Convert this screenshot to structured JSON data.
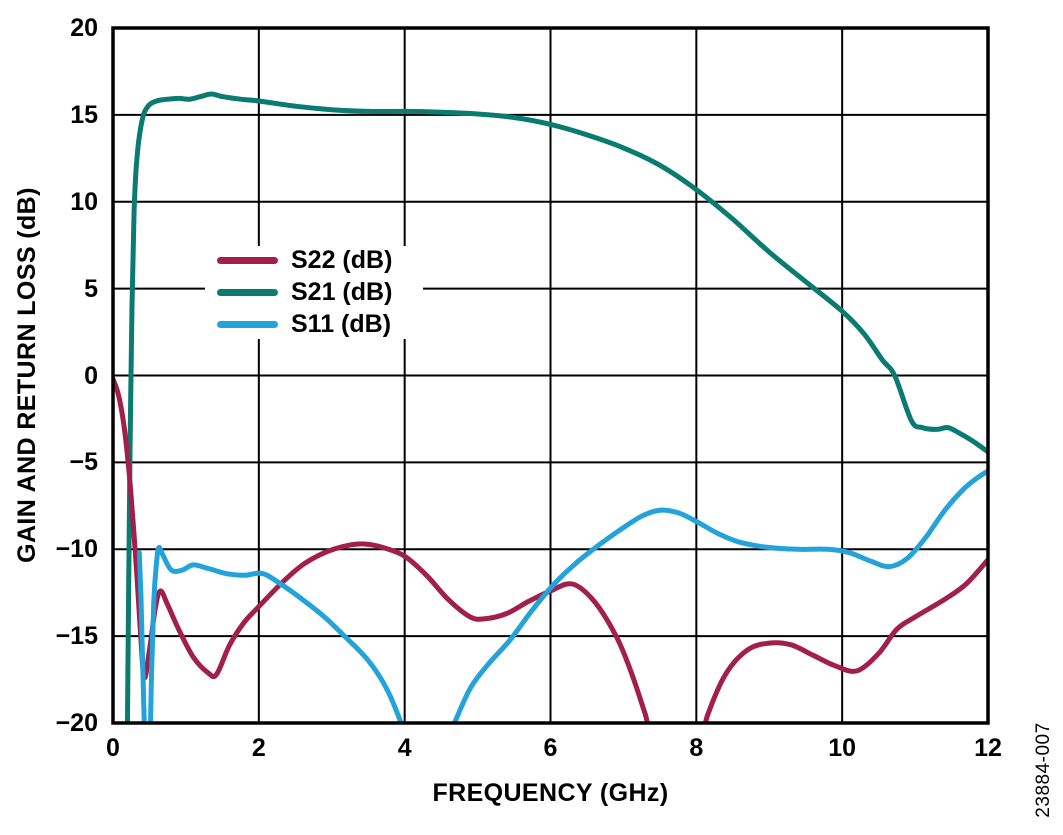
{
  "figure": {
    "figure_number": "23884-007",
    "y_axis": {
      "title": "GAIN AND RETURN LOSS (dB)",
      "tick_labels": [
        "20",
        "15",
        "10",
        "5",
        "0",
        "−5",
        "−10",
        "−15",
        "−20"
      ],
      "tick_values": [
        20,
        15,
        10,
        5,
        0,
        -5,
        -10,
        -15,
        -20
      ]
    },
    "x_axis": {
      "title": "FREQUENCY (GHz)",
      "tick_labels": [
        "0",
        "2",
        "4",
        "6",
        "8",
        "10",
        "12"
      ],
      "tick_values": [
        0,
        2,
        4,
        6,
        8,
        10,
        12
      ]
    },
    "legend": [
      {
        "label": "S22 (dB)",
        "color": "#A21E4B"
      },
      {
        "label": "S21 (dB)",
        "color": "#0A7B71"
      },
      {
        "label": "S11 (dB)",
        "color": "#24A3DA"
      }
    ]
  },
  "chart_data": {
    "type": "line",
    "title": "",
    "xlabel": "FREQUENCY (GHz)",
    "ylabel": "GAIN AND RETURN LOSS (dB)",
    "xlim": [
      0,
      12
    ],
    "ylim": [
      -20,
      20
    ],
    "x_major_step_ghz": 2,
    "y_major_step_db": 5,
    "grid": true,
    "legend_position": "inside-upper-left",
    "series": [
      {
        "name": "S21 (dB)",
        "color": "#0A7B71",
        "points": [
          [
            0.19,
            -24
          ],
          [
            0.215,
            -12
          ],
          [
            0.235,
            -4
          ],
          [
            0.26,
            4
          ],
          [
            0.29,
            9.5
          ],
          [
            0.33,
            12.6
          ],
          [
            0.4,
            14.7
          ],
          [
            0.48,
            15.5
          ],
          [
            0.6,
            15.8
          ],
          [
            0.75,
            15.9
          ],
          [
            0.9,
            15.95
          ],
          [
            1.05,
            15.9
          ],
          [
            1.2,
            16.05
          ],
          [
            1.35,
            16.2
          ],
          [
            1.5,
            16.05
          ],
          [
            1.75,
            15.9
          ],
          [
            2.0,
            15.8
          ],
          [
            2.5,
            15.5
          ],
          [
            3.0,
            15.3
          ],
          [
            3.5,
            15.2
          ],
          [
            4.0,
            15.2
          ],
          [
            4.5,
            15.15
          ],
          [
            5.0,
            15.05
          ],
          [
            5.5,
            14.85
          ],
          [
            6.0,
            14.45
          ],
          [
            6.5,
            13.85
          ],
          [
            7.0,
            13.1
          ],
          [
            7.5,
            12.1
          ],
          [
            8.0,
            10.7
          ],
          [
            8.5,
            9.0
          ],
          [
            9.0,
            7.1
          ],
          [
            9.5,
            5.4
          ],
          [
            10.0,
            3.7
          ],
          [
            10.3,
            2.4
          ],
          [
            10.55,
            0.9
          ],
          [
            10.72,
            0.0
          ],
          [
            10.95,
            -2.6
          ],
          [
            11.1,
            -3.0
          ],
          [
            11.3,
            -3.1
          ],
          [
            11.45,
            -3.0
          ],
          [
            11.6,
            -3.3
          ],
          [
            11.8,
            -3.8
          ],
          [
            12.0,
            -4.4
          ]
        ]
      },
      {
        "name": "S22 (dB)",
        "color": "#A21E4B",
        "points": [
          [
            0.0,
            -0.2
          ],
          [
            0.08,
            -1.2
          ],
          [
            0.16,
            -3.2
          ],
          [
            0.24,
            -6.5
          ],
          [
            0.32,
            -11.0
          ],
          [
            0.38,
            -15.0
          ],
          [
            0.43,
            -17.4
          ],
          [
            0.5,
            -15.8
          ],
          [
            0.58,
            -13.4
          ],
          [
            0.65,
            -12.4
          ],
          [
            0.75,
            -13.2
          ],
          [
            0.9,
            -14.6
          ],
          [
            1.1,
            -16.2
          ],
          [
            1.3,
            -17.1
          ],
          [
            1.42,
            -17.2
          ],
          [
            1.6,
            -15.5
          ],
          [
            1.8,
            -14.2
          ],
          [
            2.0,
            -13.3
          ],
          [
            2.3,
            -12.0
          ],
          [
            2.6,
            -10.9
          ],
          [
            2.9,
            -10.2
          ],
          [
            3.2,
            -9.8
          ],
          [
            3.45,
            -9.7
          ],
          [
            3.7,
            -9.9
          ],
          [
            4.0,
            -10.4
          ],
          [
            4.3,
            -11.5
          ],
          [
            4.6,
            -12.9
          ],
          [
            4.9,
            -13.9
          ],
          [
            5.1,
            -14.0
          ],
          [
            5.4,
            -13.7
          ],
          [
            5.7,
            -13.0
          ],
          [
            6.0,
            -12.4
          ],
          [
            6.3,
            -12.0
          ],
          [
            6.6,
            -13.0
          ],
          [
            6.9,
            -15.0
          ],
          [
            7.1,
            -17.0
          ],
          [
            7.3,
            -19.5
          ],
          [
            7.45,
            -21.5
          ],
          [
            8.0,
            -21.8
          ],
          [
            8.15,
            -19.6
          ],
          [
            8.4,
            -17.2
          ],
          [
            8.7,
            -15.8
          ],
          [
            9.0,
            -15.4
          ],
          [
            9.3,
            -15.5
          ],
          [
            9.6,
            -16.1
          ],
          [
            9.9,
            -16.7
          ],
          [
            10.2,
            -17.0
          ],
          [
            10.5,
            -16.0
          ],
          [
            10.75,
            -14.6
          ],
          [
            11.0,
            -13.9
          ],
          [
            11.4,
            -12.9
          ],
          [
            11.7,
            -12.0
          ],
          [
            12.0,
            -10.6
          ]
        ]
      },
      {
        "name": "S11 (dB)",
        "color": "#24A3DA",
        "points": [
          [
            0.36,
            -10.2
          ],
          [
            0.385,
            -13.0
          ],
          [
            0.41,
            -17.0
          ],
          [
            0.44,
            -21.0
          ],
          [
            0.5,
            -21.5
          ],
          [
            0.53,
            -17.0
          ],
          [
            0.56,
            -13.0
          ],
          [
            0.6,
            -10.6
          ],
          [
            0.63,
            -9.9
          ],
          [
            0.68,
            -10.3
          ],
          [
            0.8,
            -11.2
          ],
          [
            0.95,
            -11.2
          ],
          [
            1.1,
            -10.9
          ],
          [
            1.3,
            -11.1
          ],
          [
            1.55,
            -11.4
          ],
          [
            1.8,
            -11.5
          ],
          [
            2.05,
            -11.4
          ],
          [
            2.3,
            -12.0
          ],
          [
            2.6,
            -12.9
          ],
          [
            2.9,
            -13.9
          ],
          [
            3.2,
            -15.1
          ],
          [
            3.5,
            -16.4
          ],
          [
            3.75,
            -18.0
          ],
          [
            3.95,
            -20.0
          ],
          [
            4.1,
            -22.0
          ],
          [
            4.45,
            -22.0
          ],
          [
            4.65,
            -20.3
          ],
          [
            4.9,
            -18.0
          ],
          [
            5.15,
            -16.6
          ],
          [
            5.45,
            -15.2
          ],
          [
            5.75,
            -13.5
          ],
          [
            6.05,
            -12.0
          ],
          [
            6.35,
            -10.8
          ],
          [
            6.65,
            -9.8
          ],
          [
            6.95,
            -8.9
          ],
          [
            7.25,
            -8.1
          ],
          [
            7.5,
            -7.75
          ],
          [
            7.75,
            -7.9
          ],
          [
            8.0,
            -8.4
          ],
          [
            8.3,
            -9.1
          ],
          [
            8.6,
            -9.6
          ],
          [
            9.0,
            -9.9
          ],
          [
            9.4,
            -10.0
          ],
          [
            9.8,
            -10.0
          ],
          [
            10.1,
            -10.2
          ],
          [
            10.4,
            -10.7
          ],
          [
            10.65,
            -11.0
          ],
          [
            10.9,
            -10.5
          ],
          [
            11.15,
            -9.3
          ],
          [
            11.4,
            -7.8
          ],
          [
            11.65,
            -6.6
          ],
          [
            11.85,
            -5.9
          ],
          [
            12.0,
            -5.5
          ]
        ]
      }
    ]
  }
}
